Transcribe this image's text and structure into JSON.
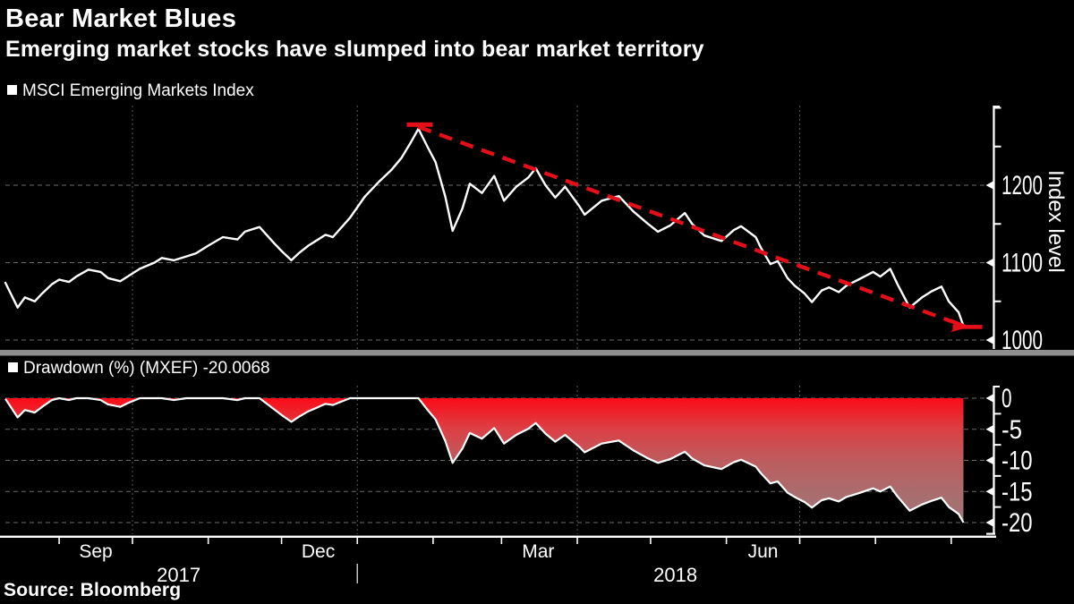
{
  "header": {
    "title": "Bear Market Blues",
    "subtitle": "Emerging market stocks have slumped into bear market territory"
  },
  "source": "Source: Bloomberg",
  "colors": {
    "background": "#000000",
    "text": "#ffffff",
    "index_line": "#ffffff",
    "trend_red": "#e60f19",
    "area_line": "#ffffff",
    "area_gradient": [
      "#fa0c18",
      "#dc4045",
      "#bd5c5e",
      "#ab6c6d",
      "#9f7677"
    ],
    "grid_horizontal": "#6b6b6b",
    "grid_vertical": "#5a5a5a",
    "axis": "#ffffff",
    "divider_bar": "#8f8f8f",
    "year_divider": "#cfcfcf"
  },
  "chart_data": {
    "type": "multi-panel",
    "columns": [
      "date",
      "msci_em_index",
      "drawdown_pct"
    ],
    "panels": [
      {
        "type": "line",
        "legend": "MSCI Emerging Markets Index",
        "axis_label": "Index level",
        "y_ticks": [
          1200,
          1100,
          1000
        ],
        "y_minor_ticks": [
          1300,
          1250,
          1150,
          1050
        ],
        "ylim": [
          985,
          1305
        ]
      },
      {
        "type": "area",
        "legend": "Drawdown (%) (MXEF) -20.0068",
        "y_ticks": [
          0,
          -5,
          -10,
          -15,
          -20
        ],
        "y_minor_ticks": [
          -2.5,
          -7.5,
          -12.5,
          -17.5
        ],
        "ylim": [
          -21.5,
          1.8
        ],
        "last_value": -20.0068
      }
    ],
    "trendline": {
      "from": {
        "date": "2018-01-26",
        "value": 1273.07
      },
      "to": {
        "date": "2018-09-06",
        "value": 1018.4
      }
    },
    "xaxis": {
      "start": "2017-08-10",
      "end": "2018-09-19",
      "month_labels": [
        {
          "label": "Sep",
          "date": "2017-09-16"
        },
        {
          "label": "Dec",
          "date": "2017-12-16"
        },
        {
          "label": "Mar",
          "date": "2018-03-16"
        },
        {
          "label": "Jun",
          "date": "2018-06-16"
        }
      ],
      "year_labels": [
        {
          "label": "2017"
        },
        {
          "label": "2018"
        }
      ],
      "divider_date": "2018-01-01",
      "quarter_gridlines": [
        "2017-10-01",
        "2018-01-01",
        "2018-04-01",
        "2018-07-01"
      ]
    },
    "points": [
      [
        "2017-08-10",
        1074,
        -0.1
      ],
      [
        "2017-08-15",
        1042,
        -3.1
      ],
      [
        "2017-08-18",
        1055,
        -1.9
      ],
      [
        "2017-08-22",
        1050,
        -2.3
      ],
      [
        "2017-08-25",
        1060,
        -1.4
      ],
      [
        "2017-08-29",
        1072,
        -0.3
      ],
      [
        "2017-09-01",
        1078,
        0
      ],
      [
        "2017-09-05",
        1075,
        -0.3
      ],
      [
        "2017-09-08",
        1082,
        0
      ],
      [
        "2017-09-13",
        1091,
        0
      ],
      [
        "2017-09-18",
        1088,
        -0.3
      ],
      [
        "2017-09-21",
        1080,
        -1.0
      ],
      [
        "2017-09-26",
        1076,
        -1.4
      ],
      [
        "2017-09-29",
        1082,
        -0.8
      ],
      [
        "2017-10-04",
        1092,
        0
      ],
      [
        "2017-10-10",
        1100,
        0
      ],
      [
        "2017-10-13",
        1106,
        0
      ],
      [
        "2017-10-18",
        1103,
        -0.3
      ],
      [
        "2017-10-23",
        1108,
        0
      ],
      [
        "2017-10-27",
        1112,
        0
      ],
      [
        "2017-11-01",
        1122,
        0
      ],
      [
        "2017-11-07",
        1133,
        0
      ],
      [
        "2017-11-13",
        1130,
        -0.3
      ],
      [
        "2017-11-16",
        1140,
        0
      ],
      [
        "2017-11-22",
        1146,
        0
      ],
      [
        "2017-11-28",
        1125,
        -1.8
      ],
      [
        "2017-12-01",
        1115,
        -2.7
      ],
      [
        "2017-12-05",
        1103,
        -3.8
      ],
      [
        "2017-12-08",
        1112,
        -3.0
      ],
      [
        "2017-12-12",
        1122,
        -2.1
      ],
      [
        "2017-12-15",
        1128,
        -1.6
      ],
      [
        "2017-12-19",
        1136,
        -0.9
      ],
      [
        "2017-12-22",
        1133,
        -1.1
      ],
      [
        "2017-12-29",
        1158,
        0
      ],
      [
        "2018-01-04",
        1185,
        0
      ],
      [
        "2018-01-10",
        1205,
        0
      ],
      [
        "2018-01-15",
        1220,
        0
      ],
      [
        "2018-01-19",
        1235,
        0
      ],
      [
        "2018-01-23",
        1256,
        0
      ],
      [
        "2018-01-26",
        1273,
        0
      ],
      [
        "2018-01-30",
        1248,
        -2.0
      ],
      [
        "2018-02-02",
        1230,
        -3.4
      ],
      [
        "2018-02-06",
        1185,
        -6.9
      ],
      [
        "2018-02-09",
        1141,
        -10.4
      ],
      [
        "2018-02-13",
        1170,
        -8.1
      ],
      [
        "2018-02-16",
        1202,
        -5.6
      ],
      [
        "2018-02-21",
        1190,
        -6.5
      ],
      [
        "2018-02-26",
        1212,
        -4.8
      ],
      [
        "2018-03-02",
        1180,
        -7.3
      ],
      [
        "2018-03-07",
        1198,
        -5.9
      ],
      [
        "2018-03-12",
        1210,
        -4.9
      ],
      [
        "2018-03-15",
        1222,
        -4.0
      ],
      [
        "2018-03-19",
        1200,
        -5.7
      ],
      [
        "2018-03-23",
        1184,
        -7.0
      ],
      [
        "2018-03-27",
        1198,
        -5.9
      ],
      [
        "2018-04-02",
        1172,
        -7.9
      ],
      [
        "2018-04-04",
        1162,
        -8.7
      ],
      [
        "2018-04-11",
        1180,
        -7.3
      ],
      [
        "2018-04-18",
        1186,
        -6.8
      ],
      [
        "2018-04-24",
        1166,
        -8.4
      ],
      [
        "2018-04-30",
        1150,
        -9.7
      ],
      [
        "2018-05-04",
        1140,
        -10.4
      ],
      [
        "2018-05-09",
        1148,
        -9.8
      ],
      [
        "2018-05-15",
        1164,
        -8.6
      ],
      [
        "2018-05-18",
        1150,
        -9.7
      ],
      [
        "2018-05-23",
        1135,
        -10.8
      ],
      [
        "2018-05-30",
        1128,
        -11.4
      ],
      [
        "2018-06-04",
        1142,
        -10.3
      ],
      [
        "2018-06-07",
        1147,
        -9.9
      ],
      [
        "2018-06-13",
        1133,
        -11.0
      ],
      [
        "2018-06-15",
        1120,
        -12.0
      ],
      [
        "2018-06-19",
        1098,
        -13.7
      ],
      [
        "2018-06-22",
        1102,
        -13.4
      ],
      [
        "2018-06-26",
        1080,
        -15.2
      ],
      [
        "2018-06-29",
        1070,
        -15.9
      ],
      [
        "2018-07-03",
        1060,
        -16.7
      ],
      [
        "2018-07-06",
        1049,
        -17.6
      ],
      [
        "2018-07-10",
        1064,
        -16.4
      ],
      [
        "2018-07-13",
        1068,
        -16.1
      ],
      [
        "2018-07-17",
        1062,
        -16.6
      ],
      [
        "2018-07-20",
        1070,
        -15.9
      ],
      [
        "2018-07-25",
        1078,
        -15.3
      ],
      [
        "2018-07-31",
        1088,
        -14.5
      ],
      [
        "2018-08-03",
        1082,
        -15.0
      ],
      [
        "2018-08-07",
        1092,
        -14.2
      ],
      [
        "2018-08-10",
        1072,
        -15.8
      ],
      [
        "2018-08-15",
        1042,
        -18.1
      ],
      [
        "2018-08-20",
        1055,
        -17.1
      ],
      [
        "2018-08-24",
        1063,
        -16.5
      ],
      [
        "2018-08-28",
        1069,
        -16.0
      ],
      [
        "2018-08-31",
        1050,
        -17.5
      ],
      [
        "2018-09-04",
        1036,
        -18.6
      ],
      [
        "2018-09-06",
        1018.4,
        -20.0068
      ]
    ]
  }
}
